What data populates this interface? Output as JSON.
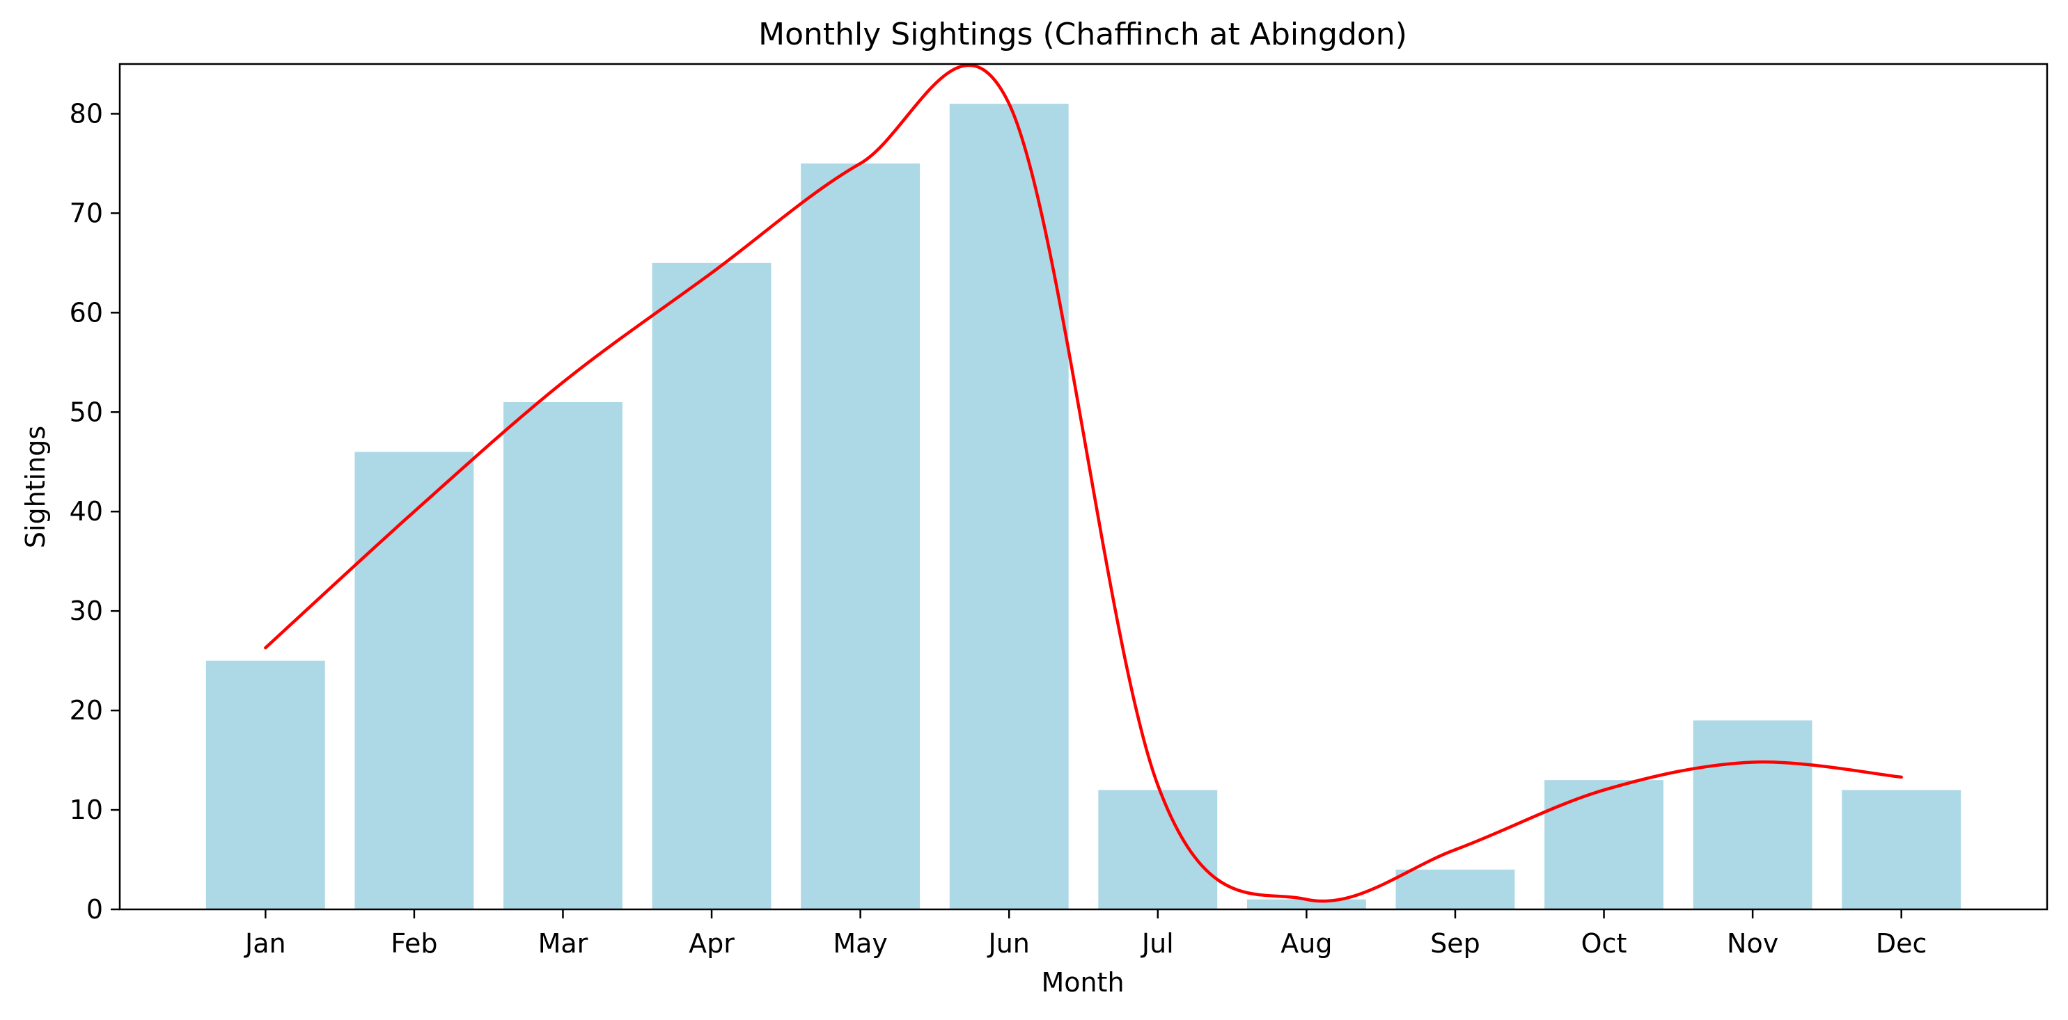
{
  "chart_data": {
    "type": "bar",
    "title": "Monthly Sightings (Chaffinch at Abingdon)",
    "xlabel": "Month",
    "ylabel": "Sightings",
    "categories": [
      "Jan",
      "Feb",
      "Mar",
      "Apr",
      "May",
      "Jun",
      "Jul",
      "Aug",
      "Sep",
      "Oct",
      "Nov",
      "Dec"
    ],
    "series": [
      {
        "type": "bar",
        "values": [
          25,
          46,
          51,
          65,
          75,
          81,
          12,
          1,
          4,
          13,
          19,
          12
        ],
        "color": "#add8e6"
      },
      {
        "type": "line",
        "smooth": true,
        "values": [
          26.3,
          40,
          53,
          64,
          75,
          81,
          12.5,
          1,
          6,
          12,
          14.8,
          13.3
        ],
        "color": "#ff0000"
      }
    ],
    "ylim": [
      0,
      85
    ],
    "yticks": [
      0,
      10,
      20,
      30,
      40,
      50,
      60,
      70,
      80
    ],
    "grid": false,
    "legend": "none"
  }
}
